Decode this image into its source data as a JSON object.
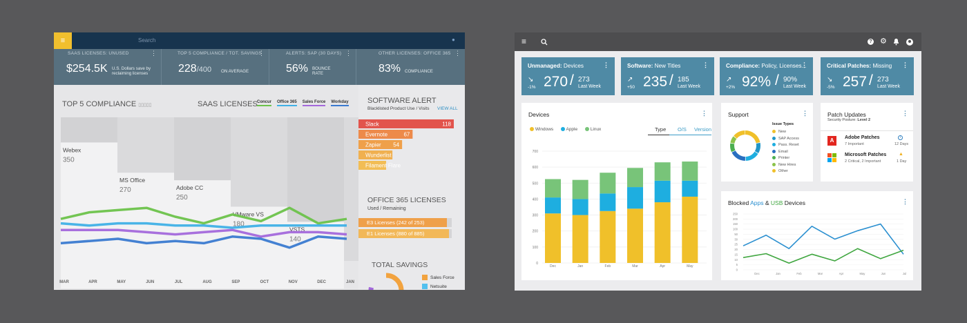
{
  "left": {
    "search_placeholder": "Search",
    "kpis": [
      {
        "label": "SAAS LICENSES:  UNUSED",
        "value": "$254.5K",
        "sub": "U.S. Dollars save by reclaiming licenses"
      },
      {
        "label": "TOP 5 COMPLIANCE /  TOT. SAVINGS",
        "value": "228",
        "of": "/400",
        "sub": "ON AVERAGE"
      },
      {
        "label": "ALERTS:  SAP (30 DAYS)",
        "value": "56%",
        "sub": "BOUNCE RATE"
      },
      {
        "label": "OTHER LICENSES:  OFFICE 365",
        "value": "83%",
        "sub": "COMPLIANCE"
      }
    ],
    "compliance_title": "TOP 5 COMPLIANCE",
    "saas_title": "SAAS LICENSES",
    "legend": [
      {
        "name": "Concur",
        "color": "#6cc24a"
      },
      {
        "name": "Office 365",
        "color": "#3fb0e6"
      },
      {
        "name": "Sales Force",
        "color": "#a368db"
      },
      {
        "name": "Workday",
        "color": "#3a7ad0"
      }
    ],
    "bars": [
      {
        "name": "Webex",
        "value": "350"
      },
      {
        "name": "MS Office",
        "value": "270"
      },
      {
        "name": "Adobe CC",
        "value": "250"
      },
      {
        "name": "VMware VS",
        "value": "180"
      },
      {
        "name": "VSTS",
        "value": "140"
      }
    ],
    "months": [
      "MAR",
      "APR",
      "MAY",
      "JUN",
      "JUL",
      "AUG",
      "SEP",
      "OCT",
      "NOV",
      "DEC",
      "JAN"
    ],
    "software_alert": {
      "title": "SOFTWARE ALERT",
      "subtitle": "Blacklisted Product Use / Visits",
      "view_all": "VIEW ALL",
      "items": [
        {
          "name": "Slack",
          "value": "118",
          "color": "#e2544c"
        },
        {
          "name": "Evernote",
          "value": "67",
          "color": "#ed8a4a"
        },
        {
          "name": "Zapier",
          "value": "54",
          "color": "#efa04a"
        },
        {
          "name": "Wunderlist",
          "value": "",
          "color": "#f0b050"
        },
        {
          "name": "Filament Flare",
          "value": "",
          "color": "#f2bd55"
        }
      ]
    },
    "office365": {
      "title": "OFFICE 365 LICENSES",
      "subtitle": "Used / Remaining",
      "items": [
        "E3 Licenses (242 of 253)",
        "E1 Licenses (880 of 885)"
      ]
    },
    "total_savings": {
      "title": "TOTAL SAVINGS",
      "legend": [
        {
          "name": "Sales Force",
          "color": "#f2a33f"
        },
        {
          "name": "Netsuite",
          "color": "#52c0ee"
        }
      ]
    }
  },
  "right": {
    "kpis": [
      {
        "title": "Unmanaged:",
        "rest": " Devices",
        "trend": "-1%",
        "value": "270",
        "of": "273",
        "period": "Last Week"
      },
      {
        "title": "Software:",
        "rest": " New Titles",
        "trend": "+50",
        "value": "235",
        "of": "185",
        "period": "Last Week"
      },
      {
        "title": "Compliance:",
        "rest": " Policy, Licenses...",
        "trend": "+2%",
        "value": "92%",
        "of": "90%",
        "period": "Last Week"
      },
      {
        "title": "Critical Patches:",
        "rest": " Missing",
        "trend": "-5%",
        "value": "257",
        "of": "273",
        "period": "Last Week"
      }
    ],
    "devices": {
      "title": "Devices",
      "legend": [
        {
          "name": "Windows",
          "color": "#f0c02a"
        },
        {
          "name": "Apple",
          "color": "#1eaee0"
        },
        {
          "name": "Linux",
          "color": "#78c479"
        }
      ],
      "tabs": [
        "Type",
        "O/S",
        "Version"
      ]
    },
    "support": {
      "title": "Support",
      "issue_title": "Issue Types",
      "issues": [
        {
          "name": "New",
          "color": "#f0c02a"
        },
        {
          "name": "SAP Access",
          "color": "#2196c8"
        },
        {
          "name": "Pass. Reset",
          "color": "#1eaee0"
        },
        {
          "name": "Email",
          "color": "#2a6fc0"
        },
        {
          "name": "Printer",
          "color": "#4caf50"
        },
        {
          "name": "New Hires",
          "color": "#8bc34a"
        },
        {
          "name": "Other",
          "color": "#f0c02a"
        }
      ]
    },
    "patch": {
      "title": "Patch Updates",
      "posture_label": "Security Posture:",
      "posture_value": "Level 2",
      "items": [
        {
          "name": "Adobe Patches",
          "detail": "7 Important",
          "days": "12 Days"
        },
        {
          "name": "Microsoft Patches",
          "detail": "2 Critical, 2 Important",
          "days": "1 Day"
        }
      ]
    },
    "blocked": {
      "pre": "Blocked ",
      "apps": "Apps",
      "amp": " & ",
      "usb": "USB",
      "post": " Devices"
    }
  },
  "chart_data": [
    {
      "type": "bar",
      "title": "TOP 5 COMPLIANCE",
      "categories": [
        "Webex",
        "MS Office",
        "Adobe CC",
        "VMware VS",
        "VSTS"
      ],
      "values": [
        350,
        270,
        250,
        180,
        140
      ]
    },
    {
      "type": "line",
      "title": "SAAS LICENSES",
      "x": [
        "MAR",
        "APR",
        "MAY",
        "JUN",
        "JUL",
        "AUG",
        "SEP",
        "OCT",
        "NOV",
        "DEC",
        "JAN"
      ],
      "series": [
        {
          "name": "Concur",
          "values": [
            74,
            77,
            78,
            79,
            75,
            72,
            76,
            73,
            79,
            72,
            74
          ]
        },
        {
          "name": "Office 365",
          "values": [
            72,
            71,
            72,
            72,
            71,
            71,
            70,
            71,
            71,
            71,
            71
          ]
        },
        {
          "name": "Sales Force",
          "values": [
            69,
            69,
            69,
            68,
            67,
            68,
            69,
            66,
            68,
            68,
            67
          ]
        },
        {
          "name": "Workday",
          "values": [
            63,
            64,
            65,
            63,
            64,
            63,
            66,
            65,
            61,
            66,
            65
          ]
        }
      ]
    },
    {
      "type": "bar",
      "title": "SOFTWARE ALERT",
      "categories": [
        "Slack",
        "Evernote",
        "Zapier",
        "Wunderlist",
        "Filament Flare"
      ],
      "values": [
        118,
        67,
        54,
        42,
        30
      ]
    },
    {
      "type": "bar",
      "title": "Devices",
      "categories": [
        "Dec",
        "Jan",
        "Feb",
        "Mar",
        "Apr",
        "May"
      ],
      "ylim": [
        0,
        700
      ],
      "yticks": [
        0,
        100,
        200,
        300,
        400,
        500,
        600,
        700
      ],
      "series": [
        {
          "name": "Windows",
          "values": [
            310,
            300,
            325,
            340,
            380,
            415
          ]
        },
        {
          "name": "Apple",
          "values": [
            100,
            100,
            110,
            135,
            135,
            100
          ]
        },
        {
          "name": "Linux",
          "values": [
            115,
            120,
            130,
            120,
            115,
            120
          ]
        }
      ]
    },
    {
      "type": "pie",
      "title": "Support",
      "categories": [
        "New",
        "SAP Access",
        "Pass. Reset",
        "Email",
        "Printer",
        "New Hires",
        "Other"
      ],
      "values": [
        22,
        12,
        16,
        18,
        10,
        8,
        14
      ]
    },
    {
      "type": "line",
      "title": "Blocked Apps & USB Devices",
      "x": [
        "Dec",
        "Jan",
        "Feb",
        "Mar",
        "Apr",
        "May",
        "Jun",
        "Jul"
      ],
      "yticks": [
        0,
        5,
        10,
        15,
        20,
        25,
        30,
        50,
        100,
        150,
        200,
        250
      ],
      "series": [
        {
          "name": "Apps",
          "values": [
            0.43,
            0.62,
            0.38,
            0.78,
            0.55,
            0.7,
            0.82,
            0.28
          ]
        },
        {
          "name": "USB",
          "values": [
            0.22,
            0.29,
            0.12,
            0.28,
            0.16,
            0.38,
            0.2,
            0.35
          ]
        }
      ]
    }
  ]
}
